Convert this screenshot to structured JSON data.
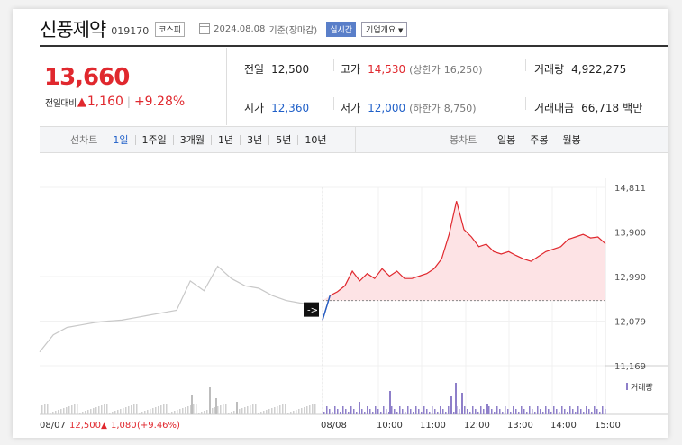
{
  "header": {
    "name": "신풍제약",
    "code": "019170",
    "market": "코스피",
    "date": "2024.08.08",
    "basis": "기준(장마감)",
    "realtime_label": "실시간",
    "overview_label": "기업개요"
  },
  "price": {
    "current": "13,660",
    "change_label": "전일대비",
    "change": "1,160",
    "change_pct": "+9.28%"
  },
  "stats": {
    "prev_close_label": "전일",
    "prev_close": "12,500",
    "high_label": "고가",
    "high": "14,530",
    "upper_limit_label": "(상한가",
    "upper_limit": "16,250)",
    "volume_label": "거래량",
    "volume": "4,922,275",
    "open_label": "시가",
    "open": "12,360",
    "low_label": "저가",
    "low": "12,000",
    "lower_limit_label": "(하한가",
    "lower_limit": "8,750)",
    "amount_label": "거래대금",
    "amount": "66,718",
    "amount_unit": "백만"
  },
  "period_bar": {
    "line_label": "선차트",
    "line_periods": [
      "1일",
      "1주일",
      "3개월",
      "1년",
      "3년",
      "5년",
      "10년"
    ],
    "candle_label": "봉차트",
    "candle_periods": [
      "일봉",
      "주봉",
      "월봉"
    ]
  },
  "footer": {
    "prev_date": "08/07",
    "prev_price": "12,500",
    "prev_change": "1,080",
    "prev_pct": "(+9.46%)"
  },
  "colors": {
    "up": "#e0282e",
    "down": "#1f5fc8",
    "volume": "#8e7fc9",
    "prev_line": "#c8c8c8"
  },
  "chart_data": {
    "type": "line",
    "y_ticks": [
      "14,811",
      "13,900",
      "12,990",
      "12,079",
      "11,169"
    ],
    "ylim": [
      11169,
      14811
    ],
    "x_ticks": [
      "08/08",
      "10:00",
      "11:00",
      "12:00",
      "13:00",
      "14:00",
      "15:00"
    ],
    "volume_label": "거래량",
    "base_line": 12500,
    "series": [
      {
        "name": "08/07",
        "x": [
          0,
          5,
          10,
          15,
          20,
          25,
          30,
          35,
          40,
          45,
          50,
          55,
          60,
          65,
          70,
          75,
          80,
          85,
          90,
          95,
          100
        ],
        "values": [
          11450,
          11800,
          11950,
          12000,
          12050,
          12080,
          12100,
          12150,
          12200,
          12250,
          12300,
          12900,
          12700,
          13200,
          12950,
          12800,
          12750,
          12600,
          12500,
          12450,
          12420
        ]
      },
      {
        "name": "08/08",
        "x": [
          "09:00",
          "09:10",
          "09:20",
          "09:30",
          "09:40",
          "09:50",
          "10:00",
          "10:10",
          "10:20",
          "10:30",
          "10:40",
          "10:50",
          "11:00",
          "11:10",
          "11:20",
          "11:30",
          "11:40",
          "11:50",
          "12:00",
          "12:10",
          "12:20",
          "12:30",
          "12:40",
          "12:50",
          "13:00",
          "13:10",
          "13:20",
          "13:30",
          "13:40",
          "13:50",
          "14:00",
          "14:10",
          "14:20",
          "14:30",
          "14:40",
          "14:50",
          "15:00",
          "15:10",
          "15:20"
        ],
        "values": [
          12100,
          12600,
          12680,
          12800,
          13100,
          12900,
          13050,
          12950,
          13150,
          13000,
          13100,
          12950,
          12950,
          13000,
          13050,
          13150,
          13350,
          13850,
          14530,
          13950,
          13800,
          13600,
          13650,
          13500,
          13450,
          13500,
          13420,
          13350,
          13300,
          13400,
          13500,
          13550,
          13600,
          13750,
          13800,
          13850,
          13780,
          13800,
          13660
        ]
      }
    ]
  }
}
